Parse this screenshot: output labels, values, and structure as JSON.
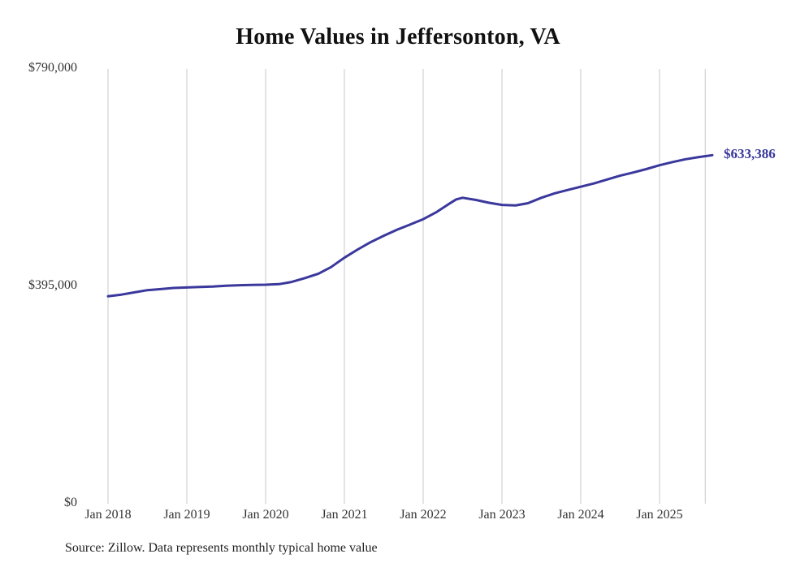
{
  "source_note": "Source: Zillow. Data represents monthly typical home value",
  "colors": {
    "line": "#3a389c",
    "grid": "#c9c9c9",
    "text": "#333333"
  },
  "chart_data": {
    "type": "line",
    "title": "Home Values in Jeffersonton, VA",
    "xlabel": "",
    "ylabel": "",
    "ylim": [
      0,
      790000
    ],
    "grid": "vertical-only",
    "legend": "none",
    "y_ticks": [
      {
        "label": "$0",
        "value": 0
      },
      {
        "label": "$395,000",
        "value": 395000
      },
      {
        "label": "$790,000",
        "value": 790000
      }
    ],
    "x_ticks": [
      {
        "label": "Jan 2018",
        "year": 2018
      },
      {
        "label": "Jan 2019",
        "year": 2019
      },
      {
        "label": "Jan 2020",
        "year": 2020
      },
      {
        "label": "Jan 2021",
        "year": 2021
      },
      {
        "label": "Jan 2022",
        "year": 2022
      },
      {
        "label": "Jan 2023",
        "year": 2023
      },
      {
        "label": "Jan 2024",
        "year": 2024
      },
      {
        "label": "Jan 2025",
        "year": 2025
      }
    ],
    "extra_gridlines": [
      2025.58
    ],
    "series_name": "Typical home value",
    "x": [
      2018.0,
      2018.17,
      2018.33,
      2018.5,
      2018.67,
      2018.83,
      2019.0,
      2019.17,
      2019.33,
      2019.5,
      2019.67,
      2019.83,
      2020.0,
      2020.17,
      2020.33,
      2020.5,
      2020.67,
      2020.83,
      2021.0,
      2021.17,
      2021.33,
      2021.5,
      2021.67,
      2021.83,
      2022.0,
      2022.17,
      2022.33,
      2022.42,
      2022.5,
      2022.67,
      2022.83,
      2023.0,
      2023.17,
      2023.33,
      2023.5,
      2023.67,
      2023.83,
      2024.0,
      2024.17,
      2024.33,
      2024.5,
      2024.67,
      2024.83,
      2025.0,
      2025.17,
      2025.33,
      2025.5,
      2025.67
    ],
    "values": [
      377000,
      380000,
      384000,
      388000,
      390000,
      392000,
      393000,
      394000,
      394500,
      396000,
      397000,
      397500,
      398000,
      399000,
      403000,
      410000,
      418000,
      430000,
      447000,
      462000,
      475000,
      487000,
      498000,
      507000,
      517000,
      530000,
      545000,
      553000,
      556000,
      552000,
      547000,
      543000,
      542000,
      546000,
      556000,
      564000,
      570000,
      576000,
      582000,
      589000,
      596000,
      602000,
      608000,
      615000,
      621000,
      626000,
      630000,
      633386
    ],
    "end_annotation": {
      "label": "$633,386",
      "value": 633386
    }
  }
}
